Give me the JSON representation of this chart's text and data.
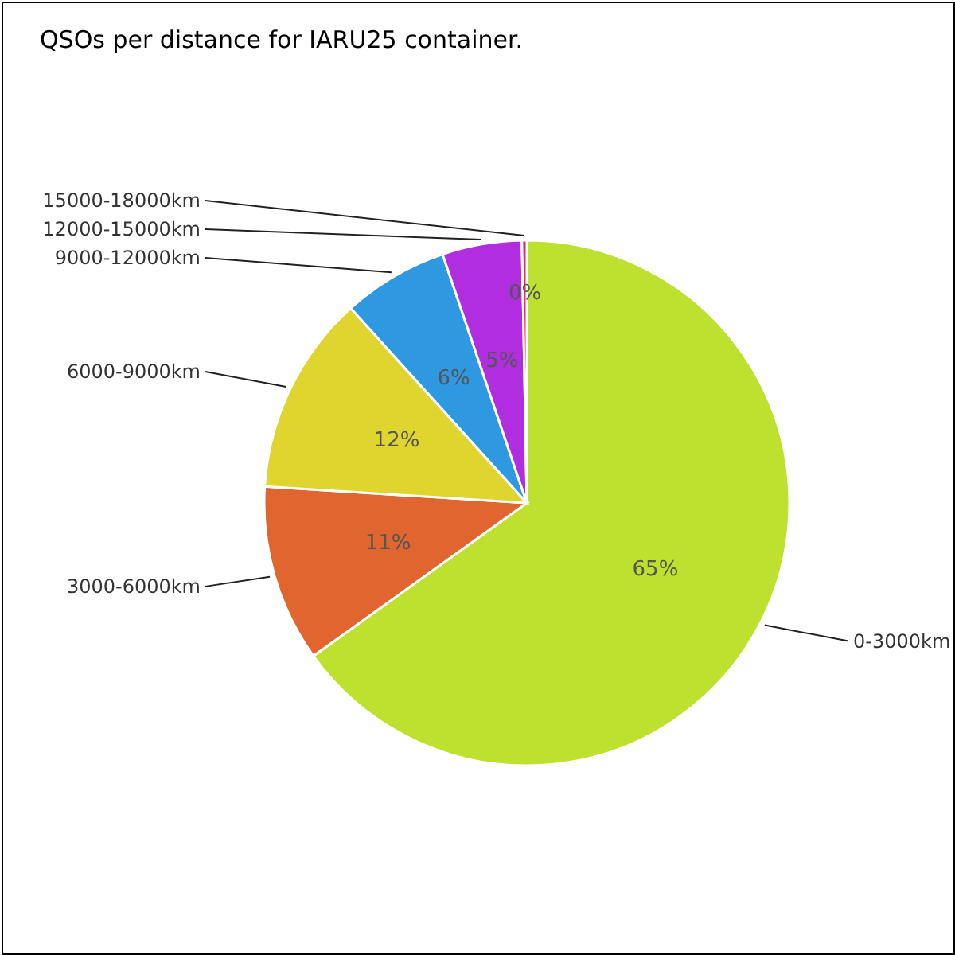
{
  "chart_data": {
    "type": "pie",
    "title": "QSOs per distance for IARU25 container.",
    "categories": [
      "0-3000km",
      "3000-6000km",
      "6000-9000km",
      "9000-12000km",
      "12000-15000km",
      "15000-18000km"
    ],
    "values": [
      65.1,
      10.9,
      12.3,
      6.5,
      4.9,
      0.3
    ],
    "value_labels": [
      "65%",
      "11%",
      "12%",
      "6%",
      "5%",
      "0%"
    ],
    "colors": [
      "#bee02e",
      "#e0652e",
      "#e0d42e",
      "#2e98e0",
      "#b02ee0",
      "#e02e5e"
    ]
  }
}
